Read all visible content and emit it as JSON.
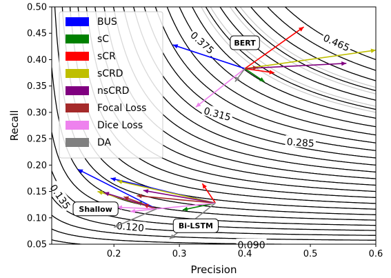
{
  "chart_data": {
    "type": "line",
    "title": "",
    "xlabel": "Precision",
    "ylabel": "Recall",
    "xlim": [
      0.105,
      0.6
    ],
    "ylim": [
      0.05,
      0.5
    ],
    "x_ticks": [
      0.2,
      0.3,
      0.4,
      0.5,
      0.6
    ],
    "x_tick_labels": [
      "0.2",
      "0.3",
      "0.4",
      "0.5",
      "0.6"
    ],
    "y_ticks": [
      0.05,
      0.1,
      0.15,
      0.2,
      0.25,
      0.3,
      0.35,
      0.4,
      0.45,
      0.5
    ],
    "y_tick_labels": [
      "0.05",
      "0.10",
      "0.15",
      "0.20",
      "0.25",
      "0.30",
      "0.35",
      "0.40",
      "0.45",
      "0.50"
    ],
    "grid": false,
    "legend_position": "upper-left",
    "background_contours": {
      "description_metric": "F1",
      "black_levels": [
        0.06,
        0.075,
        0.09,
        0.105,
        0.12,
        0.135,
        0.15,
        0.165,
        0.18,
        0.195,
        0.21,
        0.225,
        0.24,
        0.255,
        0.27,
        0.285,
        0.3,
        0.315,
        0.33,
        0.345,
        0.36,
        0.375,
        0.39,
        0.405,
        0.42,
        0.435,
        0.45,
        0.465,
        0.48
      ],
      "grey_levels": [
        0.4,
        0.41,
        0.42,
        0.43,
        0.44,
        0.45
      ],
      "labels": [
        {
          "text": "0.375",
          "x": 0.335,
          "y": 0.432,
          "angle": 42
        },
        {
          "text": "0.465",
          "x": 0.54,
          "y": 0.432,
          "angle": 24
        },
        {
          "text": "0.315",
          "x": 0.358,
          "y": 0.297,
          "angle": 15
        },
        {
          "text": "0.285",
          "x": 0.485,
          "y": 0.243,
          "angle": 4
        },
        {
          "text": "0.135",
          "x": 0.118,
          "y": 0.14,
          "angle": 55
        },
        {
          "text": "0.120",
          "x": 0.225,
          "y": 0.083,
          "angle": 5
        },
        {
          "text": "0.090",
          "x": 0.41,
          "y": 0.049,
          "angle": 0
        }
      ]
    },
    "series": [
      {
        "name": "BUS",
        "color": "#0000ff"
      },
      {
        "name": "sC",
        "color": "#008000"
      },
      {
        "name": "sCR",
        "color": "#ff0000"
      },
      {
        "name": "sCRD",
        "color": "#bfbf00"
      },
      {
        "name": "nsCRD",
        "color": "#800080"
      },
      {
        "name": "Focal Loss",
        "color": "#a52a2a"
      },
      {
        "name": "Dice Loss",
        "color": "#ee82ee"
      },
      {
        "name": "DA",
        "color": "#808080"
      }
    ],
    "groups": [
      {
        "label": "BERT",
        "label_pos": [
          0.4,
          0.432
        ],
        "origin": [
          0.4,
          0.383
        ],
        "arrows": [
          {
            "series": "BUS",
            "to": [
              0.29,
              0.428
            ]
          },
          {
            "series": "sC",
            "to": [
              0.43,
              0.358
            ]
          },
          {
            "series": "sCR",
            "to": [
              0.49,
              0.462
            ]
          },
          {
            "series": "sCR",
            "to": [
              0.445,
              0.375
            ]
          },
          {
            "series": "sCRD",
            "to": [
              0.6,
              0.418
            ]
          },
          {
            "series": "nsCRD",
            "to": [
              0.555,
              0.393
            ]
          },
          {
            "series": "Focal Loss",
            "to": [
              0.42,
              0.385
            ]
          },
          {
            "series": "Dice Loss",
            "to": [
              0.325,
              0.31
            ]
          },
          {
            "series": "DA",
            "to": [
              0.385,
              0.358
            ]
          }
        ]
      },
      {
        "label": "Bi-LSTM",
        "label_pos": [
          0.325,
          0.085
        ],
        "origin": [
          0.355,
          0.128
        ],
        "arrows": [
          {
            "series": "BUS",
            "to": [
              0.195,
              0.175
            ]
          },
          {
            "series": "sC",
            "to": [
              0.305,
              0.115
            ]
          },
          {
            "series": "sCR",
            "to": [
              0.335,
              0.165
            ]
          },
          {
            "series": "sCRD",
            "to": [
              0.205,
              0.17
            ]
          },
          {
            "series": "nsCRD",
            "to": [
              0.245,
              0.152
            ]
          },
          {
            "series": "Focal Loss",
            "to": [
              0.235,
              0.142
            ]
          },
          {
            "series": "Dice Loss",
            "to": [
              0.225,
              0.112
            ]
          },
          {
            "series": "DA",
            "to": [
              0.285,
              0.06
            ]
          }
        ]
      },
      {
        "label": "Shallow",
        "label_pos": [
          0.172,
          0.117
        ],
        "origin": [
          0.265,
          0.117
        ],
        "arrows": [
          {
            "series": "BUS",
            "to": [
              0.145,
              0.192
            ]
          },
          {
            "series": "sC",
            "to": [
              0.235,
              0.13
            ]
          },
          {
            "series": "sCR",
            "to": [
              0.245,
              0.125
            ]
          },
          {
            "series": "sCRD",
            "to": [
              0.175,
              0.15
            ]
          },
          {
            "series": "nsCRD",
            "to": [
              0.185,
              0.148
            ]
          },
          {
            "series": "Focal Loss",
            "to": [
              0.215,
              0.14
            ]
          },
          {
            "series": "Dice Loss",
            "to": [
              0.205,
              0.12
            ]
          },
          {
            "series": "DA",
            "to": [
              0.2,
              0.082
            ]
          }
        ]
      }
    ]
  }
}
